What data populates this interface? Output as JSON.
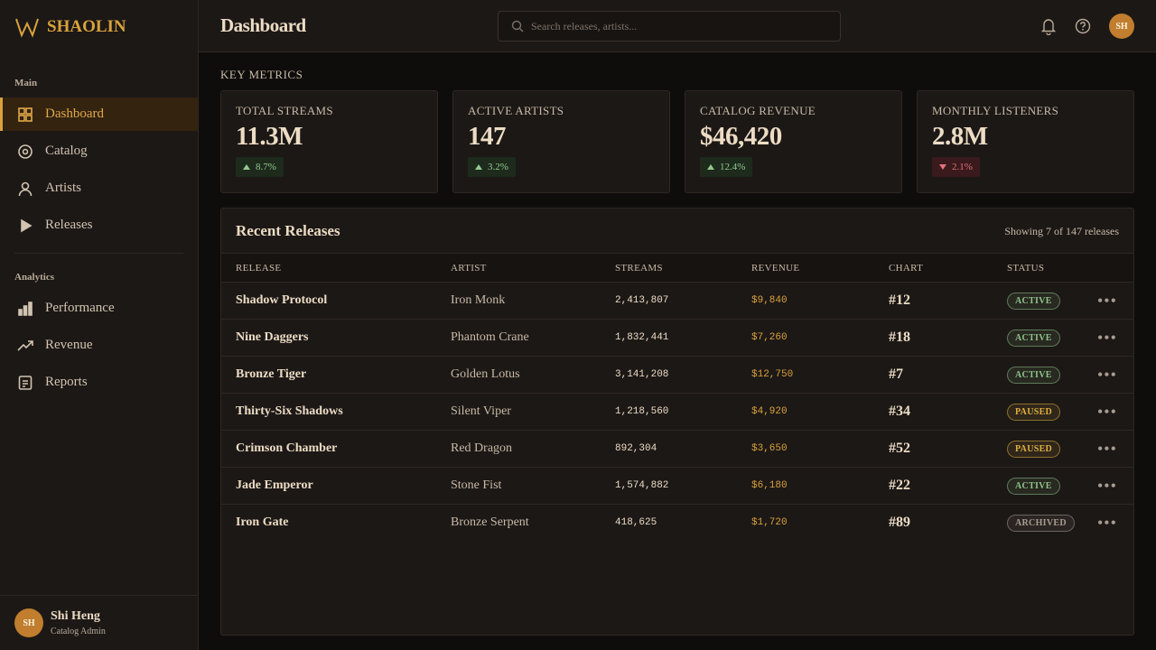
{
  "brand": "SHAOLIN",
  "header": {
    "title": "Dashboard",
    "search_placeholder": "Search releases, artists...",
    "avatar": "SH"
  },
  "sidebar": {
    "sections": [
      {
        "label": "Main",
        "items": [
          "Dashboard",
          "Catalog",
          "Artists",
          "Releases"
        ]
      },
      {
        "label": "Analytics",
        "items": [
          "Performance",
          "Revenue",
          "Reports"
        ]
      }
    ]
  },
  "user": {
    "initials": "SH",
    "name": "Shi Heng",
    "role": "Catalog Admin"
  },
  "metrics": {
    "title": "KEY METRICS",
    "cards": [
      {
        "label": "TOTAL STREAMS",
        "value": "11.3M",
        "change": "8.7%",
        "trend": "up"
      },
      {
        "label": "ACTIVE ARTISTS",
        "value": "147",
        "change": "3.2%",
        "trend": "up"
      },
      {
        "label": "CATALOG REVENUE",
        "value": "$46,420",
        "change": "12.4%",
        "trend": "up"
      },
      {
        "label": "MONTHLY LISTENERS",
        "value": "2.8M",
        "change": "2.1%",
        "trend": "down"
      }
    ]
  },
  "table": {
    "title": "Recent Releases",
    "summary": "Showing 7 of 147 releases",
    "columns": [
      "RELEASE",
      "ARTIST",
      "STREAMS",
      "REVENUE",
      "CHART",
      "STATUS"
    ],
    "rows": [
      {
        "release": "Shadow Protocol",
        "artist": "Iron Monk",
        "streams": "2,413,807",
        "revenue": "$9,840",
        "chart": "#12",
        "status": "ACTIVE",
        "status_color": "#8fc28a"
      },
      {
        "release": "Nine Daggers",
        "artist": "Phantom Crane",
        "streams": "1,832,441",
        "revenue": "$7,260",
        "chart": "#18",
        "status": "ACTIVE",
        "status_color": "#8fc28a"
      },
      {
        "release": "Bronze Tiger",
        "artist": "Golden Lotus",
        "streams": "3,141,208",
        "revenue": "$12,750",
        "chart": "#7",
        "status": "ACTIVE",
        "status_color": "#8fc28a"
      },
      {
        "release": "Thirty-Six Shadows",
        "artist": "Silent Viper",
        "streams": "1,218,560",
        "revenue": "$4,920",
        "chart": "#34",
        "status": "PAUSED",
        "status_color": "#e0b040"
      },
      {
        "release": "Crimson Chamber",
        "artist": "Red Dragon",
        "streams": "892,304",
        "revenue": "$3,650",
        "chart": "#52",
        "status": "PAUSED",
        "status_color": "#e0b040"
      },
      {
        "release": "Jade Emperor",
        "artist": "Stone Fist",
        "streams": "1,574,882",
        "revenue": "$6,180",
        "chart": "#22",
        "status": "ACTIVE",
        "status_color": "#8fc28a"
      },
      {
        "release": "Iron Gate",
        "artist": "Bronze Serpent",
        "streams": "418,625",
        "revenue": "$1,720",
        "chart": "#89",
        "status": "ARCHIVED",
        "status_color": "#a89c90"
      }
    ]
  }
}
